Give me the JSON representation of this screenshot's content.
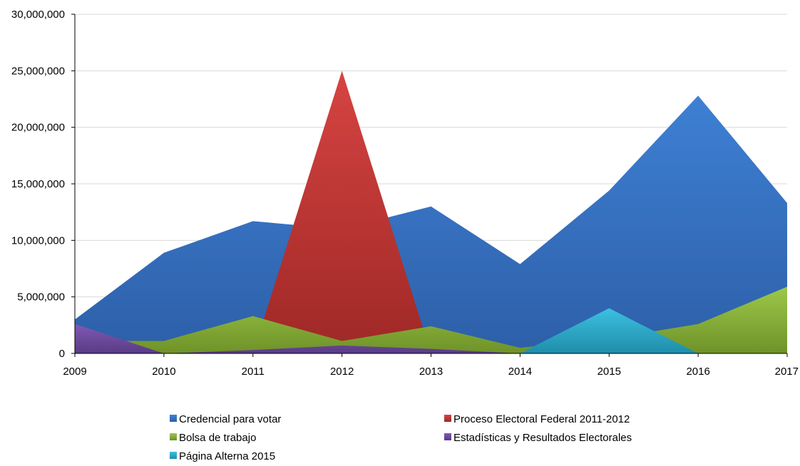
{
  "chart_data": {
    "type": "area",
    "title": "",
    "xlabel": "",
    "ylabel": "",
    "x": [
      "2009",
      "2010",
      "2011",
      "2012",
      "2013",
      "2014",
      "2015",
      "2016",
      "2017"
    ],
    "ylim": [
      0,
      30000000
    ],
    "yticks": [
      0,
      5000000,
      10000000,
      15000000,
      20000000,
      25000000,
      30000000
    ],
    "ytick_labels": [
      "0",
      "5,000,000",
      "10,000,000",
      "15,000,000",
      "20,000,000",
      "25,000,000",
      "30,000,000"
    ],
    "grid": true,
    "legend_position": "bottom",
    "series": [
      {
        "name": "Credencial para votar",
        "color": "#3a70c0",
        "values": [
          3000000,
          8900000,
          11700000,
          11000000,
          13000000,
          7900000,
          14400000,
          22800000,
          13300000
        ]
      },
      {
        "name": "Proceso Electoral Federal 2011-2012",
        "color": "#c43432",
        "values": [
          0,
          0,
          0,
          25000000,
          0,
          0,
          0,
          0,
          0
        ]
      },
      {
        "name": "Bolsa de trabajo",
        "color": "#8bb23a",
        "values": [
          1100000,
          1100000,
          3300000,
          1100000,
          2400000,
          500000,
          1300000,
          2600000,
          5900000
        ]
      },
      {
        "name": "Estadísticas y Resultados Electorales",
        "color": "#6c4a9e",
        "values": [
          2600000,
          0,
          300000,
          700000,
          400000,
          0,
          0,
          0,
          0
        ]
      },
      {
        "name": "Página Alterna 2015",
        "color": "#2eaac8",
        "values": [
          0,
          0,
          0,
          0,
          0,
          0,
          4000000,
          0,
          0
        ]
      }
    ],
    "draw_order": [
      "Credencial para votar",
      "Proceso Electoral Federal 2011-2012",
      "Bolsa de trabajo",
      "Estadísticas y Resultados Electorales",
      "Página Alterna 2015"
    ]
  }
}
